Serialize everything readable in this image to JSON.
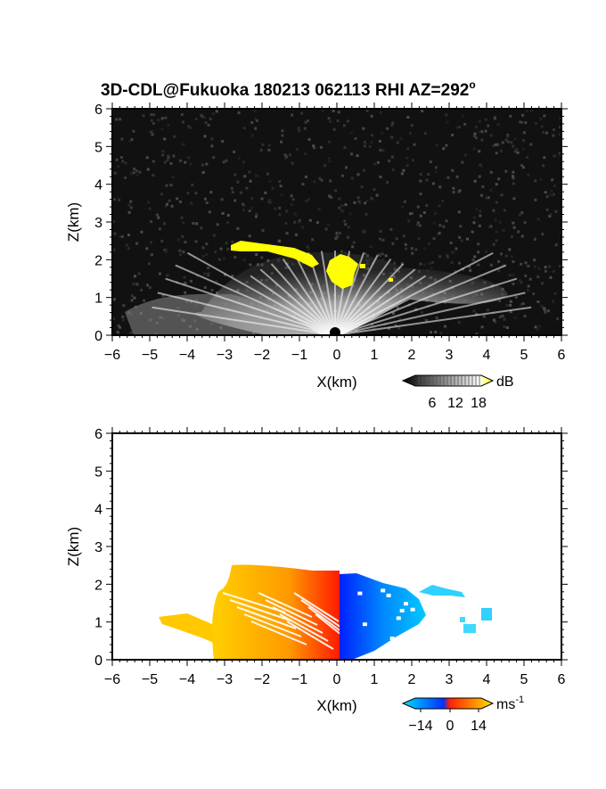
{
  "title": "3D-CDL@Fukuoka 180213 062113 RHI AZ=292",
  "title_degree": "o",
  "chart_data": [
    {
      "type": "heatmap",
      "name": "reflectivity",
      "xlabel": "X(km)",
      "ylabel": "Z(km)",
      "xlim": [
        -6,
        6
      ],
      "ylim": [
        0,
        6
      ],
      "xticks": [
        "-6",
        "-5",
        "-4",
        "-3",
        "-2",
        "-1",
        "0",
        "1",
        "2",
        "3",
        "4",
        "5",
        "6"
      ],
      "yticks": [
        "0",
        "1",
        "2",
        "3",
        "4",
        "5",
        "6"
      ],
      "background": "#111111",
      "colorbar": {
        "unit": "dB",
        "ticks": [
          "6",
          "12",
          "18"
        ],
        "colors": [
          "#000000",
          "#ffffff",
          "#ffff00"
        ]
      },
      "echo_extent": {
        "x": [
          -4.8,
          4.6
        ],
        "ztop": 2.6
      },
      "saturated_regions": [
        {
          "x": [
            -2.8,
            -0.5
          ],
          "z": [
            2.2,
            2.5
          ]
        },
        {
          "x": [
            -0.3,
            0.6
          ],
          "z": [
            1.3,
            2.3
          ]
        }
      ]
    },
    {
      "type": "heatmap",
      "name": "doppler_velocity",
      "xlabel": "X(km)",
      "ylabel": "Z(km)",
      "xlim": [
        -6,
        6
      ],
      "ylim": [
        0,
        6
      ],
      "xticks": [
        "-6",
        "-5",
        "-4",
        "-3",
        "-2",
        "-1",
        "0",
        "1",
        "2",
        "3",
        "4",
        "5",
        "6"
      ],
      "yticks": [
        "0",
        "1",
        "2",
        "3",
        "4",
        "5",
        "6"
      ],
      "background": "#ffffff",
      "colorbar": {
        "unit": "ms",
        "unit_exp": "-1",
        "ticks": [
          "−14",
          "0",
          "14"
        ],
        "colors": [
          "#00e0ff",
          "#0040ff",
          "#ff2000",
          "#ffe000"
        ]
      },
      "positive_velocity_region": {
        "x": [
          -4.7,
          0.1
        ],
        "ztop": 2.6,
        "max": 14
      },
      "negative_velocity_region": {
        "x": [
          0.1,
          2.2
        ],
        "ztop": 2.3,
        "min": -14
      },
      "far_echo_region": {
        "x": [
          2.3,
          4.1
        ],
        "z": [
          0.6,
          2.0
        ]
      }
    }
  ]
}
